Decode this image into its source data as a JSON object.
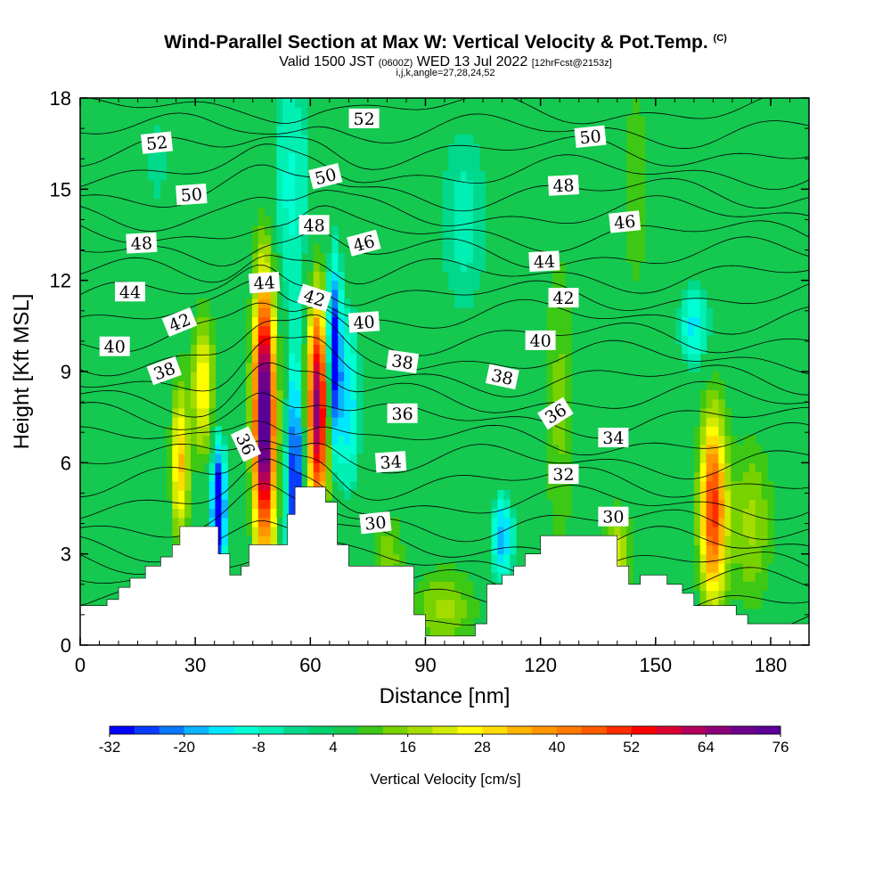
{
  "header": {
    "title_main": "Wind-Parallel Section at Max W: Vertical Velocity & Pot.Temp.",
    "title_mark": "(C)",
    "subtitle_a": "Valid 1500 JST",
    "subtitle_b": "(0600Z)",
    "subtitle_c": "WED 13 Jul 2022",
    "subtitle_d": "[12hrFcst@2153z]",
    "subsubtitle": "i,j,k,angle=27,28,24,52"
  },
  "chart_data": {
    "type": "heatmap",
    "xlabel": "Distance [nm]",
    "ylabel": "Height [Kft MSL]",
    "xlim": [
      0,
      190
    ],
    "ylim": [
      0,
      18
    ],
    "xticks": [
      0,
      30,
      60,
      90,
      120,
      150,
      180
    ],
    "yticks": [
      0,
      3,
      6,
      9,
      12,
      15,
      18
    ],
    "colorbar": {
      "label": "Vertical Velocity [cm/s]",
      "tick_labels": [
        "-32",
        "-20",
        "-8",
        "4",
        "16",
        "28",
        "40",
        "52",
        "64",
        "76"
      ],
      "min": -32,
      "max": 76,
      "colors": [
        "#0000ff",
        "#0a3cff",
        "#0a78ff",
        "#0ab4ff",
        "#00e6ff",
        "#00ffd2",
        "#00f0b4",
        "#00d98c",
        "#00d26e",
        "#14c850",
        "#3cc814",
        "#78d200",
        "#a5dc00",
        "#d2eb00",
        "#ffff00",
        "#ffdc00",
        "#ffb400",
        "#ff9600",
        "#ff7800",
        "#ff5a00",
        "#ff2d00",
        "#ff0000",
        "#dc0032",
        "#b4005a",
        "#8c0078",
        "#6e008c",
        "#5a0096"
      ]
    },
    "terrain": [
      [
        0,
        1.3
      ],
      [
        7,
        1.3
      ],
      [
        7,
        1.5
      ],
      [
        10,
        1.5
      ],
      [
        10,
        1.9
      ],
      [
        13,
        1.9
      ],
      [
        13,
        2.2
      ],
      [
        17,
        2.2
      ],
      [
        17,
        2.6
      ],
      [
        21,
        2.6
      ],
      [
        21,
        2.9
      ],
      [
        24,
        2.9
      ],
      [
        24,
        3.3
      ],
      [
        26,
        3.3
      ],
      [
        26,
        3.6
      ],
      [
        26,
        3.6
      ],
      [
        26,
        3.9
      ],
      [
        36,
        3.9
      ],
      [
        36,
        3.0
      ],
      [
        39,
        3.0
      ],
      [
        39,
        2.3
      ],
      [
        42,
        2.3
      ],
      [
        42,
        2.6
      ],
      [
        44,
        2.6
      ],
      [
        44,
        3.3
      ],
      [
        54,
        3.3
      ],
      [
        54,
        4.3
      ],
      [
        56,
        4.3
      ],
      [
        56,
        5.2
      ],
      [
        64,
        5.2
      ],
      [
        64,
        4.7
      ],
      [
        67,
        4.7
      ],
      [
        67,
        3.3
      ],
      [
        70,
        3.3
      ],
      [
        70,
        2.6
      ],
      [
        87,
        2.6
      ],
      [
        87,
        1.0
      ],
      [
        90,
        1.0
      ],
      [
        90,
        0.3
      ],
      [
        103,
        0.3
      ],
      [
        103,
        0.7
      ],
      [
        106,
        0.7
      ],
      [
        106,
        2.0
      ],
      [
        110,
        2.0
      ],
      [
        110,
        2.3
      ],
      [
        113,
        2.3
      ],
      [
        113,
        2.6
      ],
      [
        116,
        2.6
      ],
      [
        116,
        3.0
      ],
      [
        120,
        3.0
      ],
      [
        120,
        3.6
      ],
      [
        140,
        3.6
      ],
      [
        140,
        2.6
      ],
      [
        143,
        2.6
      ],
      [
        143,
        2.0
      ],
      [
        146,
        2.0
      ],
      [
        146,
        2.3
      ],
      [
        153,
        2.3
      ],
      [
        153,
        2.0
      ],
      [
        157,
        2.0
      ],
      [
        157,
        1.7
      ],
      [
        160,
        1.7
      ],
      [
        160,
        1.3
      ],
      [
        171,
        1.3
      ],
      [
        171,
        1.0
      ],
      [
        174,
        1.0
      ],
      [
        174,
        0.7
      ],
      [
        184,
        0.7
      ],
      [
        184,
        0.7
      ],
      [
        190,
        0.7
      ]
    ],
    "contour_labels": [
      {
        "x": 20,
        "y": 16.5,
        "text": "52",
        "angle": -6
      },
      {
        "x": 74,
        "y": 17.3,
        "text": "52",
        "angle": 0
      },
      {
        "x": 133,
        "y": 16.7,
        "text": "50",
        "angle": -6
      },
      {
        "x": 29,
        "y": 14.8,
        "text": "50",
        "angle": -4
      },
      {
        "x": 64,
        "y": 15.4,
        "text": "50",
        "angle": -14
      },
      {
        "x": 126,
        "y": 15.1,
        "text": "48",
        "angle": -3
      },
      {
        "x": 16,
        "y": 13.2,
        "text": "48",
        "angle": -3
      },
      {
        "x": 61,
        "y": 13.8,
        "text": "48",
        "angle": 0
      },
      {
        "x": 142,
        "y": 13.9,
        "text": "46",
        "angle": -6
      },
      {
        "x": 74,
        "y": 13.2,
        "text": "46",
        "angle": -15
      },
      {
        "x": 121,
        "y": 12.6,
        "text": "44",
        "angle": -3
      },
      {
        "x": 13,
        "y": 11.6,
        "text": "44",
        "angle": 0
      },
      {
        "x": 48,
        "y": 11.9,
        "text": "44",
        "angle": -4
      },
      {
        "x": 126,
        "y": 11.4,
        "text": "42",
        "angle": 0
      },
      {
        "x": 26,
        "y": 10.6,
        "text": "42",
        "angle": -22
      },
      {
        "x": 61,
        "y": 11.4,
        "text": "42",
        "angle": 18
      },
      {
        "x": 74,
        "y": 10.6,
        "text": "40",
        "angle": -4
      },
      {
        "x": 120,
        "y": 10.0,
        "text": "40",
        "angle": 0
      },
      {
        "x": 9,
        "y": 9.8,
        "text": "40",
        "angle": 0
      },
      {
        "x": 22,
        "y": 9.0,
        "text": "38",
        "angle": -20
      },
      {
        "x": 84,
        "y": 9.3,
        "text": "38",
        "angle": 8
      },
      {
        "x": 110,
        "y": 8.8,
        "text": "38",
        "angle": 12
      },
      {
        "x": 84,
        "y": 7.6,
        "text": "36",
        "angle": 0
      },
      {
        "x": 124,
        "y": 7.6,
        "text": "36",
        "angle": -32
      },
      {
        "x": 43,
        "y": 6.6,
        "text": "36",
        "angle": 65
      },
      {
        "x": 81,
        "y": 6.0,
        "text": "34",
        "angle": -4
      },
      {
        "x": 139,
        "y": 6.8,
        "text": "34",
        "angle": 0
      },
      {
        "x": 126,
        "y": 5.6,
        "text": "32",
        "angle": 0
      },
      {
        "x": 77,
        "y": 4.0,
        "text": "30",
        "angle": -6
      },
      {
        "x": 139,
        "y": 4.2,
        "text": "30",
        "angle": 0
      }
    ]
  }
}
